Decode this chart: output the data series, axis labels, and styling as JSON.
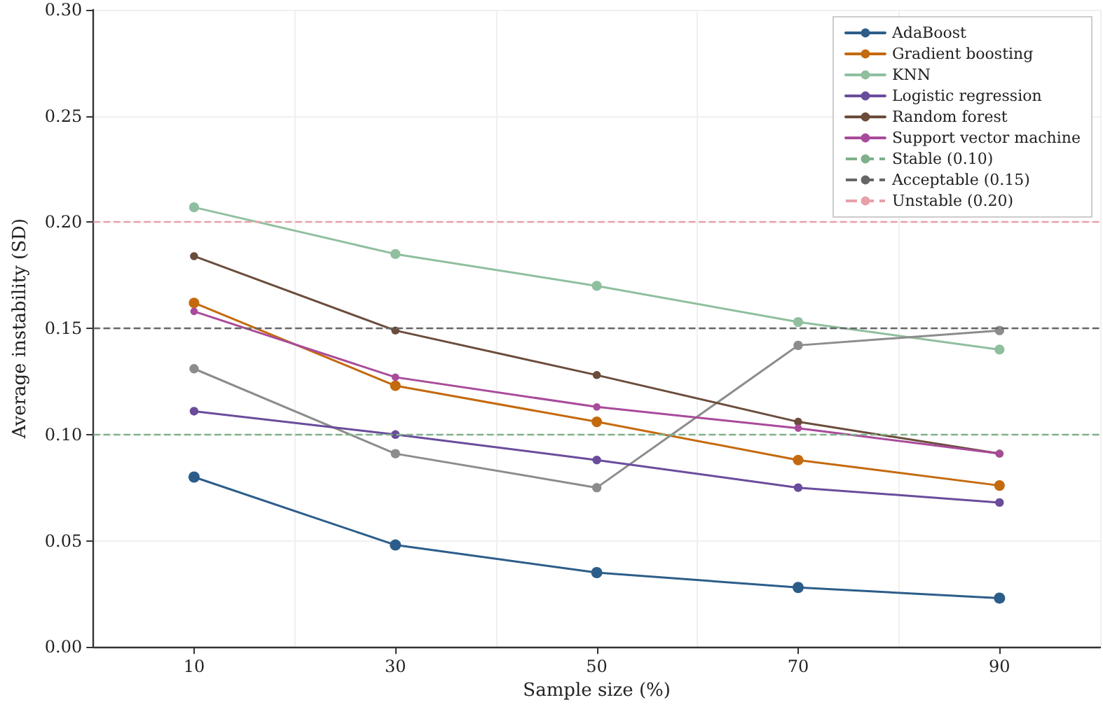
{
  "chart_data": {
    "type": "line",
    "xlabel": "Sample size (%)",
    "ylabel": "Average instability (SD)",
    "categories": [
      "10",
      "30",
      "50",
      "70",
      "90"
    ],
    "series": [
      {
        "name": "AdaBoost",
        "color": "#2c5d8a",
        "values": [
          0.08,
          0.048,
          0.035,
          0.028,
          0.023
        ]
      },
      {
        "name": "Gradient boosting",
        "color": "#c46a0e",
        "values": [
          0.162,
          0.123,
          0.106,
          0.088,
          0.076
        ]
      },
      {
        "name": "KNN",
        "color": "#8fbf9f",
        "values": [
          0.207,
          0.185,
          0.17,
          0.153,
          0.14
        ]
      },
      {
        "color": "#8c8c8c",
        "values": [
          0.131,
          0.091,
          0.075,
          0.142,
          0.149
        ]
      },
      {
        "name": "Logistic regression",
        "color": "#6a4c9c",
        "values": [
          0.111,
          0.1,
          0.088,
          0.075,
          0.068
        ]
      },
      {
        "name": "Random forest",
        "color": "#6b4c3b",
        "values": [
          0.184,
          0.149,
          0.128,
          0.106,
          0.091
        ]
      },
      {
        "name": "Support vector machine",
        "color": "#a94a9a",
        "values": [
          0.158,
          0.127,
          0.113,
          0.103,
          0.091
        ]
      }
    ],
    "ylim": [
      0,
      0.3
    ],
    "yticks": [
      {
        "value": 0,
        "label": "0.00"
      },
      {
        "value": 0.05,
        "label": "0.05"
      },
      {
        "value": 0.1,
        "label": "0.10"
      },
      {
        "value": 0.15,
        "label": "0.15"
      },
      {
        "value": 0.2,
        "label": "0.20"
      },
      {
        "value": 0.25,
        "label": "0.25"
      },
      {
        "value": 0.3,
        "label": "0.30"
      }
    ],
    "ref_lines": [
      {
        "axis": "y",
        "value": 0.1,
        "label": "Stable (0.10)",
        "color": "#7fb08a",
        "line_style": "dashed"
      },
      {
        "axis": "y",
        "value": 0.15,
        "label": "Acceptable (0.15)",
        "color": "#666666",
        "line_style": "dashed"
      },
      {
        "axis": "y",
        "value": 0.2,
        "label": "Unstable (0.20)",
        "color": "#e8a0a8",
        "line_style": "dashed"
      }
    ],
    "grid": true,
    "legend": "top right",
    "marker": "circle",
    "line_style": "solid"
  }
}
